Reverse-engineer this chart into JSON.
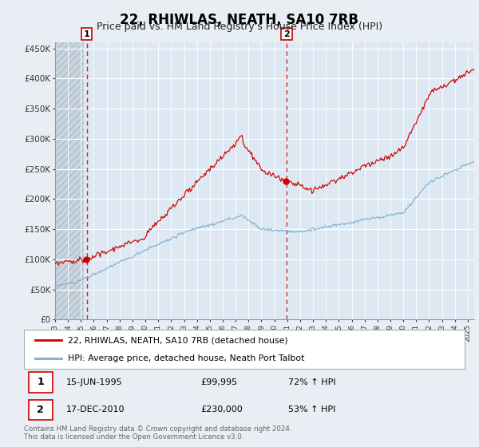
{
  "title": "22, RHIWLAS, NEATH, SA10 7RB",
  "subtitle": "Price paid vs. HM Land Registry's House Price Index (HPI)",
  "title_fontsize": 12,
  "subtitle_fontsize": 9,
  "ylabel_ticks": [
    "£0",
    "£50K",
    "£100K",
    "£150K",
    "£200K",
    "£250K",
    "£300K",
    "£350K",
    "£400K",
    "£450K"
  ],
  "ytick_vals": [
    0,
    50000,
    100000,
    150000,
    200000,
    250000,
    300000,
    350000,
    400000,
    450000
  ],
  "ylim": [
    0,
    460000
  ],
  "xlim_start": 1993.0,
  "xlim_end": 2025.5,
  "sale1_year": 1995.458,
  "sale1_price": 99995,
  "sale2_year": 2010.958,
  "sale2_price": 230000,
  "legend_line1": "22, RHIWLAS, NEATH, SA10 7RB (detached house)",
  "legend_line2": "HPI: Average price, detached house, Neath Port Talbot",
  "footer_line1": "Contains HM Land Registry data © Crown copyright and database right 2024.",
  "footer_line2": "This data is licensed under the Open Government Licence v3.0.",
  "property_color": "#cc0000",
  "hpi_color": "#7aadd4",
  "bg_color": "#e8eef4",
  "plot_bg": "#dde8f2",
  "dashed_line_color": "#cc0000",
  "hatch_end": 1995.25
}
